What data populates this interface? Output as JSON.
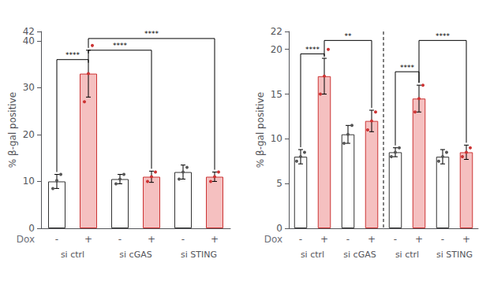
{
  "chart_data": [
    {
      "type": "bar",
      "ylabel": "% β-gal positive",
      "xlabel": "Dox",
      "categories": [
        "-",
        "+",
        "-",
        "+",
        "-",
        "+"
      ],
      "groups": [
        "si ctrl",
        "si cGAS",
        "si STING"
      ],
      "values": [
        10,
        33,
        10.5,
        11,
        12,
        11
      ],
      "errors": [
        1.5,
        5,
        1.0,
        1.2,
        1.5,
        1.0
      ],
      "points": [
        [
          8.5,
          10.2,
          11.5
        ],
        [
          27,
          33,
          39
        ],
        [
          9.5,
          10.5,
          11.5
        ],
        [
          10.0,
          11.0,
          12.0
        ],
        [
          10.5,
          12.0,
          13.0
        ],
        [
          10.0,
          11.0,
          12.0
        ]
      ],
      "colors": [
        "#ffffff",
        "#f5c0c0",
        "#ffffff",
        "#f5c0c0",
        "#ffffff",
        "#f5c0c0"
      ],
      "edge_colors": [
        "#333333",
        "#cc3333",
        "#333333",
        "#cc3333",
        "#333333",
        "#cc3333"
      ],
      "point_colors": [
        "#555555",
        "#cc3333",
        "#555555",
        "#cc3333",
        "#555555",
        "#cc3333"
      ],
      "ylim": [
        0,
        42
      ],
      "yticks": [
        0,
        10,
        20,
        30,
        40
      ],
      "grid": false,
      "annotations": [
        {
          "text": "****",
          "from": 0,
          "to": 1,
          "y": 36
        },
        {
          "text": "****",
          "from": 1,
          "to": 3,
          "y": 38
        },
        {
          "text": "****",
          "from": 1,
          "to": 5,
          "y": 40.5
        }
      ]
    },
    {
      "type": "bar",
      "ylabel": "% β-gal positive",
      "xlabel": "Dox",
      "categories": [
        "-",
        "+",
        "-",
        "+",
        "-",
        "+",
        "-",
        "+"
      ],
      "groups": [
        "si ctrl",
        "si cGAS",
        "si ctrl",
        "si STING"
      ],
      "values": [
        8,
        17,
        10.5,
        12,
        8.5,
        14.5,
        8,
        8.5
      ],
      "errors": [
        0.8,
        2.0,
        1.0,
        1.2,
        0.5,
        1.5,
        0.8,
        0.8
      ],
      "points": [
        [
          7.5,
          8.0,
          8.5
        ],
        [
          15.0,
          17.0,
          20.0
        ],
        [
          9.5,
          10.5,
          11.5
        ],
        [
          11.0,
          12.0,
          13.0
        ],
        [
          8.0,
          8.5,
          9.0
        ],
        [
          13.0,
          14.5,
          16.0
        ],
        [
          7.5,
          8.0,
          8.5
        ],
        [
          8.0,
          8.5,
          9.0
        ]
      ],
      "colors": [
        "#ffffff",
        "#f5c0c0",
        "#ffffff",
        "#f5c0c0",
        "#ffffff",
        "#f5c0c0",
        "#ffffff",
        "#f5c0c0"
      ],
      "edge_colors": [
        "#333333",
        "#cc3333",
        "#333333",
        "#cc3333",
        "#333333",
        "#cc3333",
        "#333333",
        "#cc3333"
      ],
      "point_colors": [
        "#555555",
        "#cc3333",
        "#555555",
        "#cc3333",
        "#555555",
        "#cc3333",
        "#555555",
        "#cc3333"
      ],
      "ylim": [
        0,
        22
      ],
      "yticks": [
        0,
        5,
        10,
        15,
        20
      ],
      "grid": false,
      "divider": {
        "after": 3,
        "line_style": "dashed"
      },
      "annotations": [
        {
          "text": "****",
          "from": 0,
          "to": 1,
          "y": 19.5
        },
        {
          "text": "**",
          "from": 1,
          "to": 3,
          "y": 21.0
        },
        {
          "text": "****",
          "from": 4,
          "to": 5,
          "y": 17.5
        },
        {
          "text": "****",
          "from": 5,
          "to": 7,
          "y": 21.0
        }
      ]
    }
  ]
}
